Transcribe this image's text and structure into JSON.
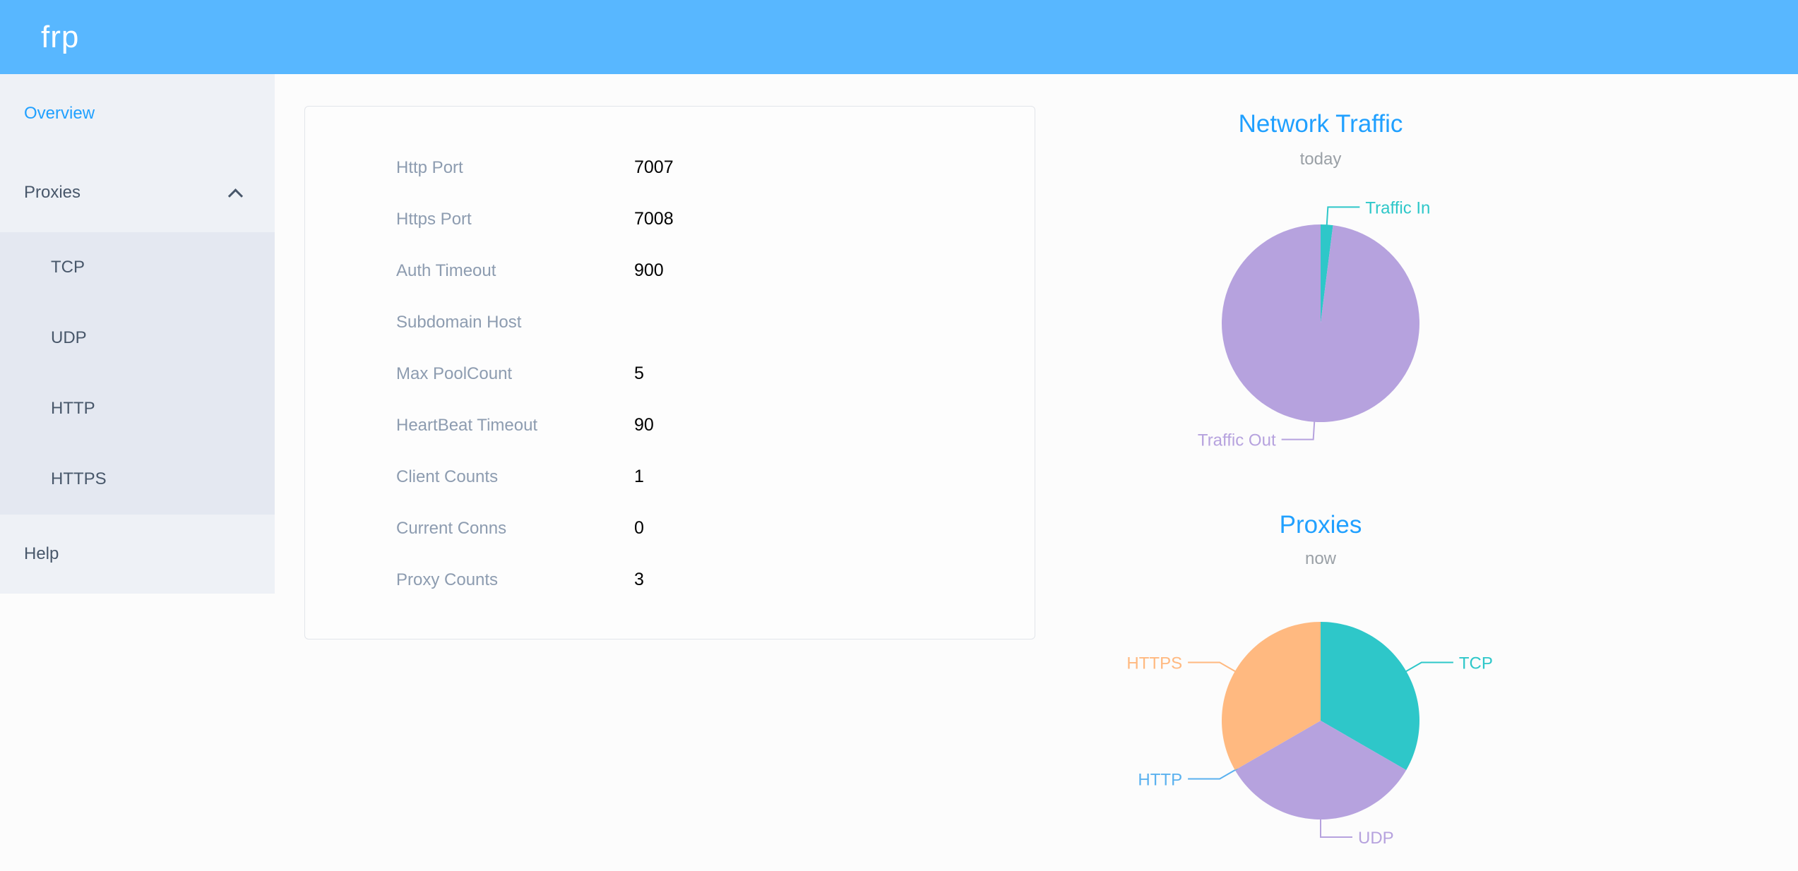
{
  "theme": {
    "header_bg": "#58b7ff",
    "accent_blue": "#20a0ff",
    "sidebar_bg": "#eef1f6",
    "submenu_bg": "#e4e8f1"
  },
  "header": {
    "logo": "frp"
  },
  "sidebar": {
    "items": [
      {
        "label": "Overview",
        "active": true
      },
      {
        "label": "Proxies",
        "expanded": true,
        "children": [
          "TCP",
          "UDP",
          "HTTP",
          "HTTPS"
        ]
      },
      {
        "label": "Help"
      }
    ]
  },
  "overview": {
    "rows": [
      {
        "label": "Http Port",
        "value": "7007"
      },
      {
        "label": "Https Port",
        "value": "7008"
      },
      {
        "label": "Auth Timeout",
        "value": "900"
      },
      {
        "label": "Subdomain Host",
        "value": ""
      },
      {
        "label": "Max PoolCount",
        "value": "5"
      },
      {
        "label": "HeartBeat Timeout",
        "value": "90"
      },
      {
        "label": "Client Counts",
        "value": "1"
      },
      {
        "label": "Current Conns",
        "value": "0"
      },
      {
        "label": "Proxy Counts",
        "value": "3"
      }
    ]
  },
  "chart_data": [
    {
      "type": "pie",
      "title": "Network Traffic",
      "subtitle": "today",
      "labels": [
        "Traffic In",
        "Traffic Out"
      ],
      "values": [
        2,
        98
      ],
      "colors": [
        "#2ec7c9",
        "#b6a2de"
      ],
      "legend_position": "outside-callout"
    },
    {
      "type": "pie",
      "title": "Proxies",
      "subtitle": "now",
      "labels": [
        "TCP",
        "UDP",
        "HTTP",
        "HTTPS"
      ],
      "values": [
        1,
        1,
        0,
        1
      ],
      "colors": [
        "#2ec7c9",
        "#b6a2de",
        "#5ab1ef",
        "#ffb980"
      ],
      "legend_position": "outside-callout"
    }
  ]
}
